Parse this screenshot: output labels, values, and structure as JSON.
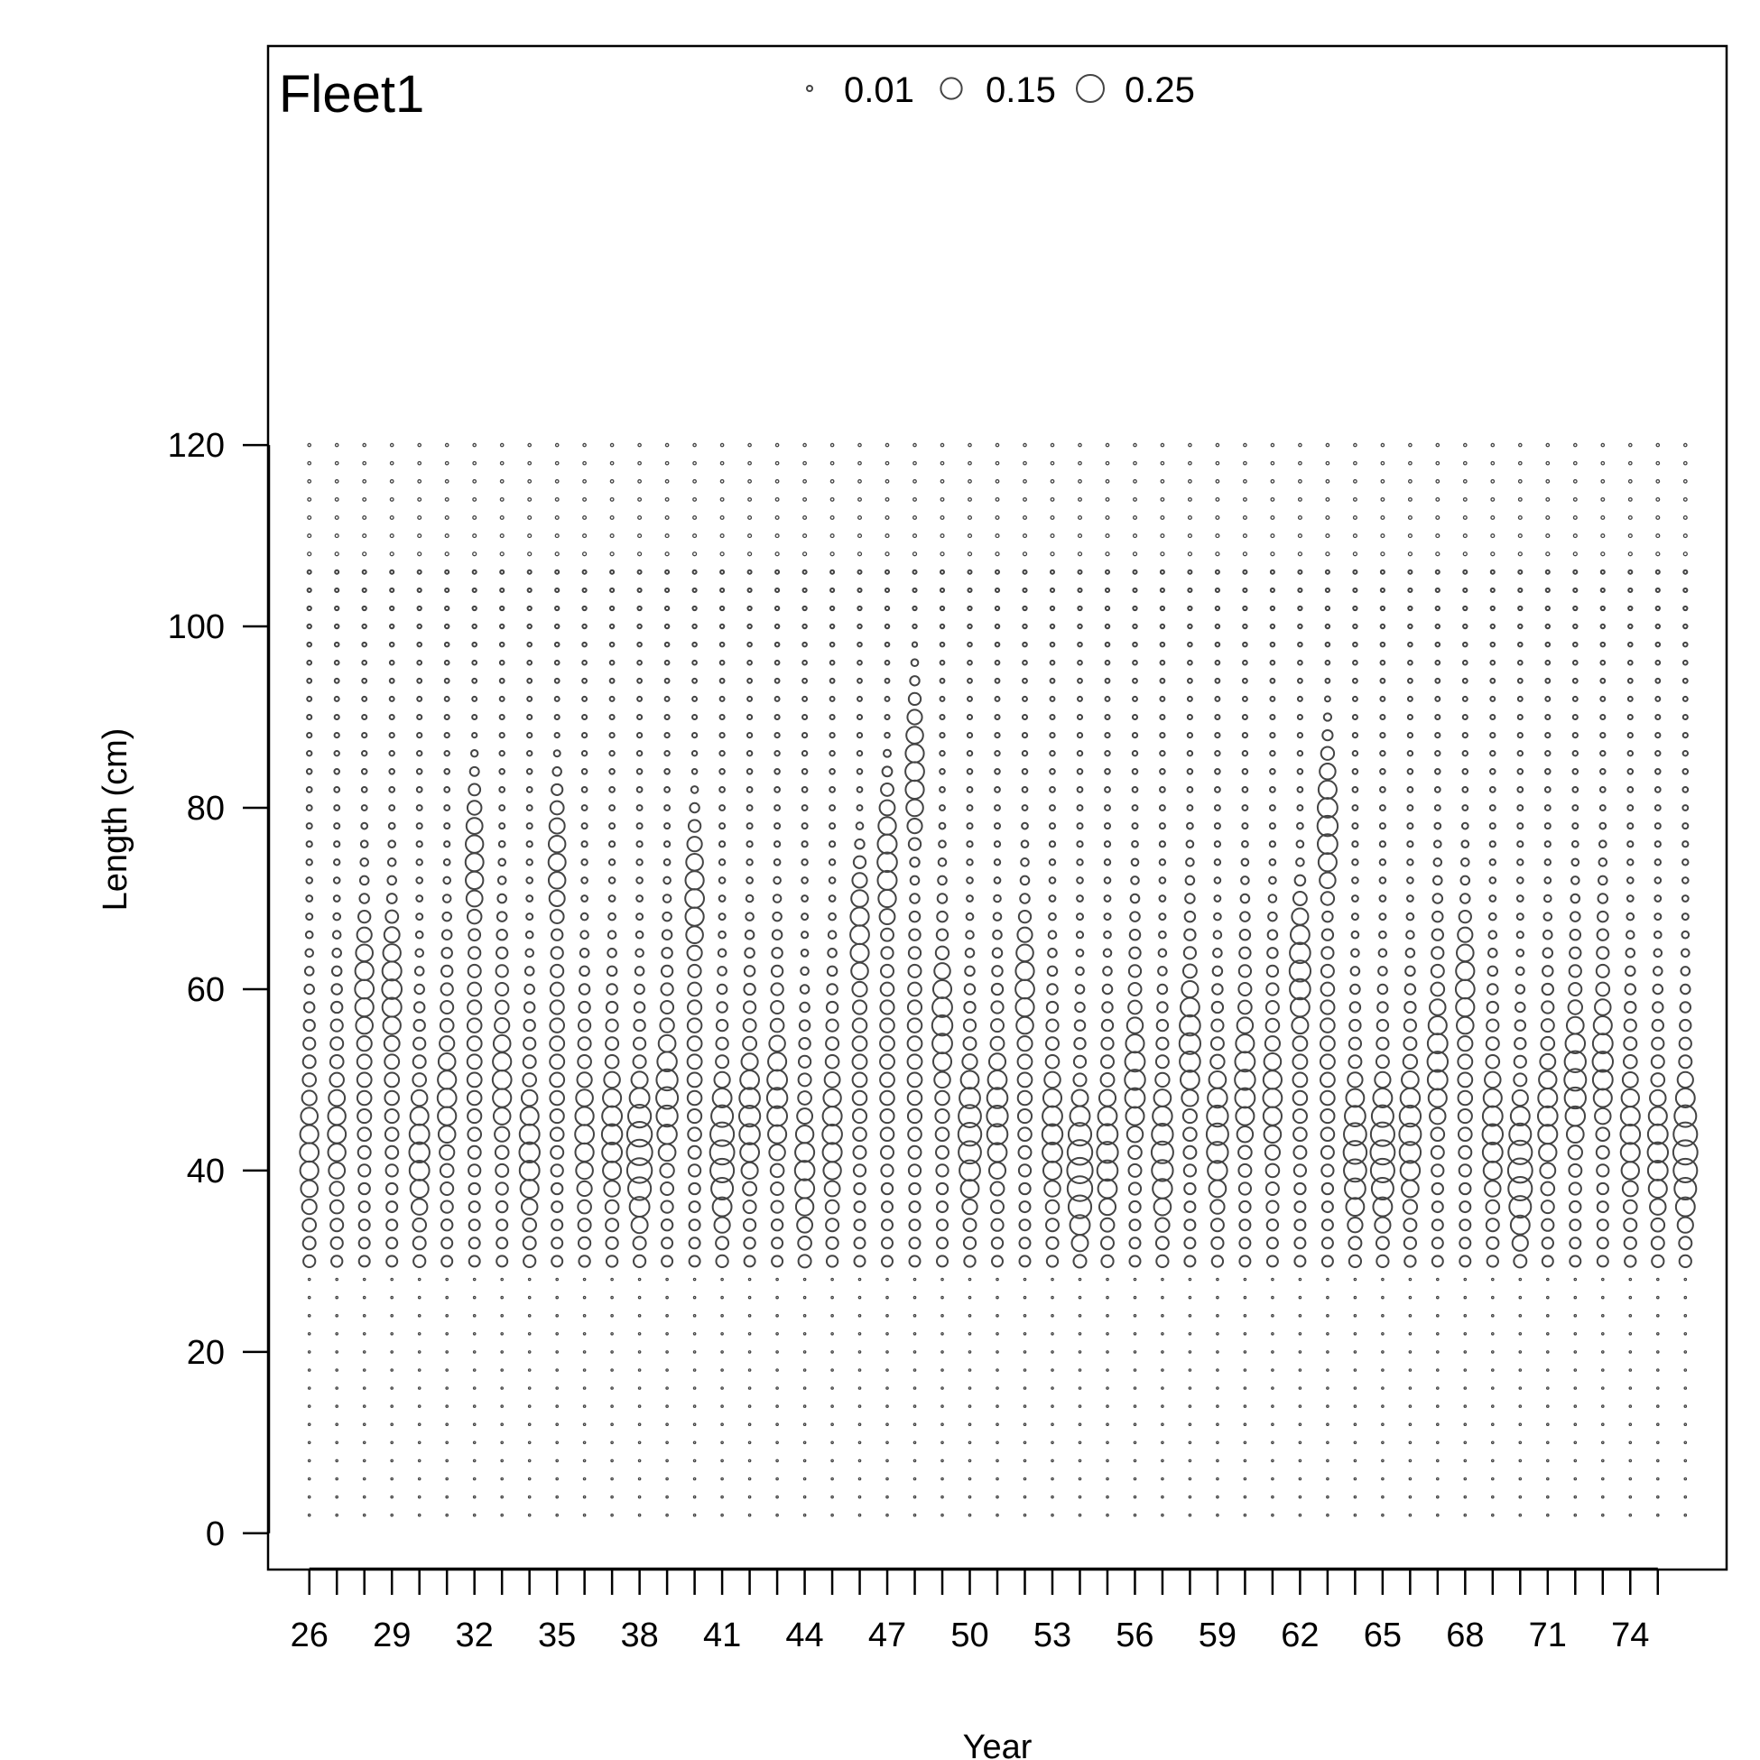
{
  "chart_data": {
    "type": "scatter",
    "subtype": "bubble",
    "title": "Fleet1",
    "xlabel": "Year",
    "ylabel": "Length (cm)",
    "xlim": [
      24.5,
      77.5
    ],
    "ylim": [
      -4,
      164
    ],
    "x_ticks": [
      26,
      27,
      28,
      29,
      30,
      31,
      32,
      33,
      34,
      35,
      36,
      37,
      38,
      39,
      40,
      41,
      42,
      43,
      44,
      45,
      46,
      47,
      48,
      49,
      50,
      51,
      52,
      53,
      54,
      55,
      56,
      57,
      58,
      59,
      60,
      61,
      62,
      63,
      64,
      65,
      66,
      67,
      68,
      69,
      70,
      71,
      72,
      73,
      74,
      75
    ],
    "x_tick_labels": [
      "26",
      "29",
      "32",
      "35",
      "38",
      "41",
      "44",
      "47",
      "50",
      "53",
      "56",
      "59",
      "62",
      "65",
      "68",
      "71",
      "74"
    ],
    "y_ticks": [
      "0",
      "20",
      "40",
      "60",
      "80",
      "100",
      "120"
    ],
    "grid": false,
    "legend": {
      "placement": "top-center",
      "entries": [
        {
          "label": "0.01",
          "value": 0.01
        },
        {
          "label": "0.15",
          "value": 0.15
        },
        {
          "label": "0.25",
          "value": 0.25
        }
      ]
    },
    "bins": {
      "start": 2,
      "end": 120,
      "step": 2
    },
    "years": [
      26,
      27,
      28,
      29,
      30,
      31,
      32,
      33,
      34,
      35,
      36,
      37,
      38,
      39,
      40,
      41,
      42,
      43,
      44,
      45,
      46,
      47,
      48,
      49,
      50,
      51,
      52,
      53,
      54,
      55,
      56,
      57,
      58,
      59,
      60,
      61,
      62,
      63,
      64,
      65,
      66,
      67,
      68,
      69,
      70,
      71,
      72,
      73,
      74,
      75,
      76
    ],
    "peak_length_by_year": [
      42,
      44,
      60,
      60,
      42,
      48,
      74,
      50,
      42,
      74,
      44,
      44,
      42,
      48,
      70,
      42,
      46,
      48,
      40,
      44,
      66,
      74,
      84,
      56,
      44,
      46,
      60,
      44,
      40,
      42,
      50,
      42,
      54,
      44,
      50,
      48,
      62,
      78,
      42,
      42,
      44,
      52,
      60,
      44,
      40,
      46,
      50,
      52,
      44,
      42,
      42
    ],
    "peak_value_by_year": [
      0.12,
      0.11,
      0.12,
      0.13,
      0.14,
      0.12,
      0.11,
      0.12,
      0.14,
      0.1,
      0.12,
      0.14,
      0.22,
      0.16,
      0.12,
      0.2,
      0.15,
      0.14,
      0.13,
      0.13,
      0.12,
      0.13,
      0.12,
      0.14,
      0.18,
      0.15,
      0.12,
      0.14,
      0.22,
      0.15,
      0.14,
      0.16,
      0.15,
      0.16,
      0.14,
      0.12,
      0.15,
      0.14,
      0.18,
      0.2,
      0.16,
      0.14,
      0.12,
      0.14,
      0.2,
      0.13,
      0.16,
      0.14,
      0.13,
      0.14,
      0.2
    ]
  }
}
